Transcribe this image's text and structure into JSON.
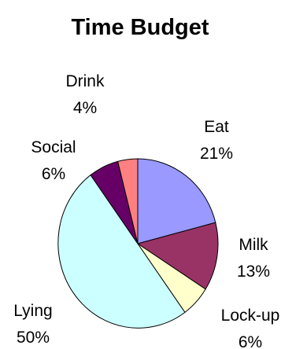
{
  "chart_data": {
    "type": "pie",
    "title": "Time Budget",
    "slices": [
      {
        "label": "Eat",
        "value": 21,
        "display": "21%",
        "color": "#9999FF"
      },
      {
        "label": "Milk",
        "value": 13,
        "display": "13%",
        "color": "#993366"
      },
      {
        "label": "Lock-up",
        "value": 6,
        "display": "6%",
        "color": "#FFFFCC"
      },
      {
        "label": "Lying",
        "value": 50,
        "display": "50%",
        "color": "#CCFFFF"
      },
      {
        "label": "Social",
        "value": 6,
        "display": "6%",
        "color": "#660066"
      },
      {
        "label": "Drink",
        "value": 4,
        "display": "4%",
        "color": "#FF8080"
      }
    ],
    "start": "12 o'clock",
    "direction": "clockwise",
    "legend": "none",
    "data_labels": "category and percentage"
  }
}
